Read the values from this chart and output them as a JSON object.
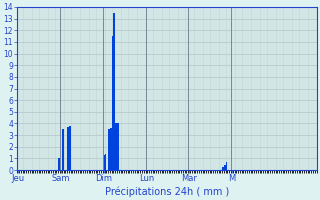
{
  "title": "",
  "xlabel": "Précipitations 24h ( mm )",
  "ylabel": "",
  "bar_color": "#0044dd",
  "background_color": "#dff2f2",
  "grid_color": "#aabbbb",
  "axis_color": "#2244cc",
  "tick_color": "#2244cc",
  "ylim": [
    0,
    14
  ],
  "yticks": [
    0,
    1,
    2,
    3,
    4,
    5,
    6,
    7,
    8,
    9,
    10,
    11,
    12,
    13,
    14
  ],
  "day_labels": [
    "Jeu",
    "Sam",
    "Dim",
    "Lun",
    "Mar",
    "M"
  ],
  "num_bars": 168,
  "bars_per_day": 24,
  "bar_values_compact": [
    0,
    0,
    0,
    0,
    0,
    0,
    0,
    0,
    0,
    0,
    0,
    0,
    0,
    0,
    0,
    0,
    0,
    0,
    0,
    0,
    0,
    0,
    0,
    1,
    0,
    3.5,
    0,
    0,
    3.7,
    3.8,
    0,
    0,
    0,
    0,
    0,
    0,
    0,
    0,
    0,
    0,
    0,
    0,
    0,
    0,
    0,
    0,
    0,
    0,
    1.3,
    1.4,
    0,
    3.5,
    3.6,
    11.5,
    13.5,
    4.0,
    4.0,
    0,
    0,
    0,
    0,
    0,
    0,
    0,
    0,
    0,
    0,
    0,
    0,
    0,
    0,
    0,
    0,
    0,
    0,
    0,
    0,
    0,
    0,
    0,
    0,
    0,
    0,
    0,
    0,
    0,
    0,
    0,
    0,
    0,
    0,
    0,
    0,
    0,
    0,
    0,
    0,
    0,
    0,
    0,
    0,
    0,
    0,
    0,
    0,
    0,
    0,
    0,
    0,
    0,
    0,
    0,
    0,
    0,
    0,
    0.3,
    0.4,
    0.7,
    0,
    0,
    0,
    0,
    0,
    0,
    0,
    0,
    0,
    0,
    0,
    0,
    0,
    0,
    0,
    0,
    0,
    0,
    0,
    0,
    0,
    0,
    0,
    0,
    0,
    0,
    0,
    0,
    0,
    0,
    0,
    0,
    0,
    0,
    0,
    0,
    0,
    0,
    0,
    0,
    0,
    0,
    0,
    0,
    0,
    0,
    0,
    0,
    0,
    0
  ]
}
